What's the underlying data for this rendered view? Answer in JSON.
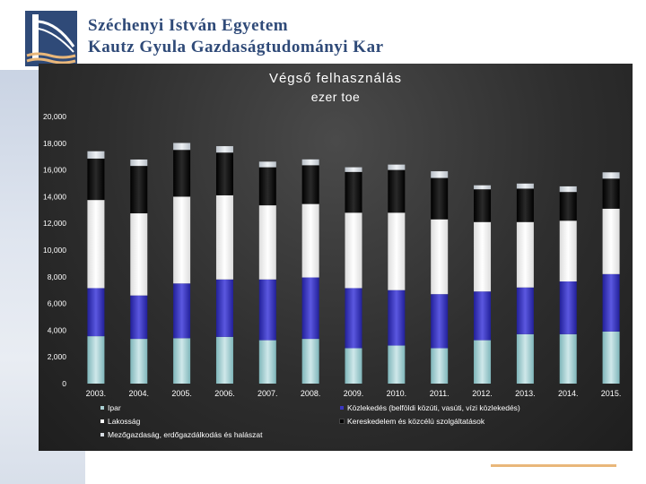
{
  "header": {
    "line1": "Széchenyi István Egyetem",
    "line2": "Kautz Gyula Gazdaságtudományi Kar",
    "logo_icon": "bridge-logo-icon"
  },
  "colors": {
    "Ipar": "#aacfd2",
    "Közlekedés": "#3a36c0",
    "Lakosság": "#ffffff",
    "Kereskedelem": "#050505",
    "Mezőgazdaság": "#d7dce2",
    "accent": "#e9b77a",
    "brand": "#2f4a78"
  },
  "chart_data": {
    "type": "bar",
    "stacked": true,
    "title": "Végső felhasználás",
    "subtitle": "ezer toe",
    "categories": [
      "2003.",
      "2004.",
      "2005.",
      "2006.",
      "2007.",
      "2008.",
      "2009.",
      "2010.",
      "2011.",
      "2012.",
      "2013.",
      "2014.",
      "2015."
    ],
    "ylim": [
      0,
      20000
    ],
    "yticks": [
      "0",
      "2,000",
      "4,000",
      "6,000",
      "8,000",
      "10,000",
      "12,000",
      "14,000",
      "16,000",
      "18,000",
      "20,000"
    ],
    "series": [
      {
        "name": "Ipar",
        "values": [
          3550,
          3350,
          3400,
          3500,
          3250,
          3350,
          2650,
          2850,
          2650,
          3250,
          3700,
          3700,
          3900
        ]
      },
      {
        "name": "Közlekedés (belföldi közúti, vasúti, vízi közlekedés)",
        "values": [
          3600,
          3250,
          4100,
          4300,
          4550,
          4600,
          4500,
          4150,
          4050,
          3650,
          3500,
          3950,
          4300
        ]
      },
      {
        "name": "Lakosság",
        "values": [
          6600,
          6150,
          6500,
          6300,
          5550,
          5500,
          5650,
          5800,
          5600,
          5200,
          4900,
          4550,
          4900
        ]
      },
      {
        "name": "Kereskedelem és közcélú szolgáltatások",
        "values": [
          3100,
          3550,
          3500,
          3200,
          2850,
          2900,
          3050,
          3200,
          3100,
          2450,
          2500,
          2150,
          2250
        ]
      },
      {
        "name": "Mezőgazdaság, erdőgazdálkodás és halászat",
        "values": [
          550,
          480,
          520,
          480,
          420,
          440,
          350,
          400,
          500,
          300,
          380,
          420,
          470
        ]
      }
    ],
    "legend_position": "bottom"
  }
}
